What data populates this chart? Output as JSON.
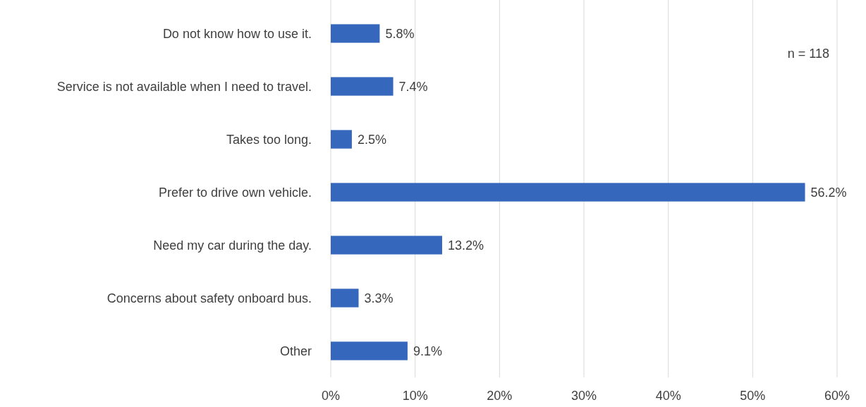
{
  "chart_data": {
    "type": "bar",
    "orientation": "horizontal",
    "categories": [
      "Do not know how to use it.",
      "Service is not available when I need to travel.",
      "Takes too long.",
      "Prefer to drive own vehicle.",
      "Need my car during the day.",
      "Concerns about safety onboard bus.",
      "Other"
    ],
    "values": [
      5.8,
      7.4,
      2.5,
      56.2,
      13.2,
      3.3,
      9.1
    ],
    "value_labels": [
      "5.8%",
      "7.4%",
      "2.5%",
      "56.2%",
      "13.2%",
      "3.3%",
      "9.1%"
    ],
    "color": "#3567bc",
    "xlim": [
      0,
      60
    ],
    "xticks": [
      {
        "value": 0,
        "label": "0%"
      },
      {
        "value": 10,
        "label": "10%"
      },
      {
        "value": 20,
        "label": "20%"
      },
      {
        "value": 30,
        "label": "30%"
      },
      {
        "value": 40,
        "label": "40%"
      },
      {
        "value": 50,
        "label": "50%"
      },
      {
        "value": 60,
        "label": "60%"
      }
    ],
    "grid": "x",
    "annotations": [
      "n = 118"
    ]
  }
}
